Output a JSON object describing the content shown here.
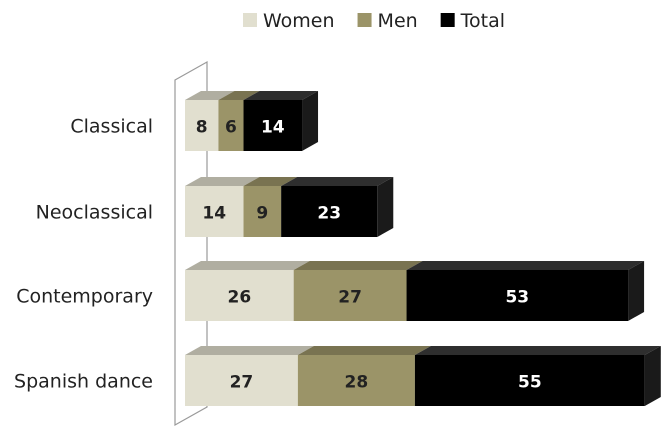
{
  "chart_data": {
    "type": "bar",
    "orientation": "horizontal",
    "stacked": true,
    "three_d": true,
    "categories": [
      "Classical",
      "Neoclassical",
      "Contemporary",
      "Spanish dance"
    ],
    "series": [
      {
        "name": "Women",
        "values": [
          8,
          14,
          26,
          27
        ],
        "color": "#e1dfcf",
        "label_color": "#222222"
      },
      {
        "name": "Men",
        "values": [
          6,
          9,
          27,
          28
        ],
        "color": "#9b9468",
        "label_color": "#222222"
      },
      {
        "name": "Total",
        "values": [
          14,
          23,
          53,
          55
        ],
        "color": "#000000",
        "label_color": "#ffffff"
      }
    ],
    "legend_position": "top",
    "grid": false,
    "title": "",
    "xlabel": "",
    "ylabel": ""
  }
}
